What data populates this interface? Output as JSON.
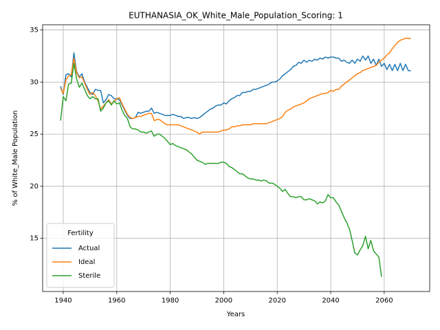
{
  "chart_data": {
    "type": "line",
    "title": "EUTHANASIA_OK_White_Male_Population_Scoring: 1",
    "x_label": "Years",
    "y_label": "% of White_Male Population",
    "legend_title": "Fertility",
    "legend_position": "lower left",
    "grid": true,
    "xlim": [
      1932.3,
      2077
    ],
    "ylim": [
      9.9,
      35.5
    ],
    "xticks": [
      1940,
      1960,
      1980,
      2000,
      2020,
      2040,
      2060
    ],
    "yticks": [
      15,
      20,
      25,
      30,
      35
    ],
    "x": [
      1939,
      1940,
      1941,
      1942,
      1943,
      1944,
      1945,
      1946,
      1947,
      1948,
      1949,
      1950,
      1951,
      1952,
      1953,
      1954,
      1955,
      1956,
      1957,
      1958,
      1959,
      1960,
      1961,
      1962,
      1963,
      1964,
      1965,
      1966,
      1967,
      1968,
      1969,
      1970,
      1971,
      1972,
      1973,
      1974,
      1975,
      1976,
      1977,
      1978,
      1979,
      1980,
      1981,
      1982,
      1983,
      1984,
      1985,
      1986,
      1987,
      1988,
      1989,
      1990,
      1991,
      1992,
      1993,
      1994,
      1995,
      1996,
      1997,
      1998,
      1999,
      2000,
      2001,
      2002,
      2003,
      2004,
      2005,
      2006,
      2007,
      2008,
      2009,
      2010,
      2011,
      2012,
      2013,
      2014,
      2015,
      2016,
      2017,
      2018,
      2019,
      2020,
      2021,
      2022,
      2023,
      2024,
      2025,
      2026,
      2027,
      2028,
      2029,
      2030,
      2031,
      2032,
      2033,
      2034,
      2035,
      2036,
      2037,
      2038,
      2039,
      2040,
      2041,
      2042,
      2043,
      2044,
      2045,
      2046,
      2047,
      2048,
      2049,
      2050,
      2051,
      2052,
      2053,
      2054,
      2055,
      2056,
      2057,
      2058,
      2059,
      2060,
      2061,
      2062,
      2063,
      2064,
      2065,
      2066,
      2067,
      2068,
      2069,
      2070
    ],
    "series": [
      {
        "name": "Actual",
        "color": "#1f77b4",
        "values": [
          29.6,
          28.8,
          30.7,
          30.8,
          30.5,
          32.8,
          31.0,
          30.5,
          30.8,
          30.0,
          29.5,
          29.0,
          28.8,
          29.3,
          29.2,
          29.2,
          28.0,
          28.3,
          28.8,
          28.7,
          28.4,
          28.4,
          28.3,
          27.8,
          27.3,
          26.8,
          26.5,
          26.5,
          26.6,
          27.1,
          27.0,
          27.1,
          27.2,
          27.2,
          27.5,
          27.0,
          27.1,
          27.0,
          26.9,
          26.8,
          26.8,
          26.8,
          26.9,
          26.8,
          26.7,
          26.7,
          26.5,
          26.6,
          26.6,
          26.5,
          26.6,
          26.5,
          26.6,
          26.8,
          27.0,
          27.2,
          27.4,
          27.5,
          27.7,
          27.8,
          27.8,
          28.0,
          27.9,
          28.2,
          28.4,
          28.5,
          28.7,
          28.7,
          29.0,
          29.0,
          29.1,
          29.1,
          29.3,
          29.3,
          29.4,
          29.5,
          29.6,
          29.7,
          29.8,
          30.0,
          30.0,
          30.1,
          30.3,
          30.6,
          30.8,
          31.0,
          31.2,
          31.5,
          31.6,
          31.9,
          31.8,
          32.1,
          31.9,
          32.1,
          32.0,
          32.2,
          32.1,
          32.3,
          32.2,
          32.4,
          32.3,
          32.4,
          32.4,
          32.3,
          32.3,
          32.0,
          32.1,
          31.9,
          31.8,
          32.1,
          31.8,
          32.2,
          32.0,
          32.5,
          32.1,
          32.5,
          31.8,
          32.2,
          31.6,
          32.2,
          31.5,
          31.8,
          31.2,
          31.7,
          31.1,
          31.7,
          31.1,
          31.8,
          31.1,
          31.7,
          31.1,
          31.1
        ]
      },
      {
        "name": "Ideal",
        "color": "#ff7f0e",
        "values": [
          29.4,
          28.9,
          30.2,
          30.6,
          30.7,
          32.3,
          30.9,
          30.4,
          30.5,
          29.9,
          29.3,
          28.8,
          29.0,
          28.7,
          28.2,
          27.4,
          27.7,
          28.0,
          28.3,
          27.9,
          28.1,
          28.4,
          28.5,
          27.9,
          27.4,
          26.9,
          26.6,
          26.5,
          26.6,
          26.7,
          26.7,
          26.8,
          26.9,
          27.0,
          27.0,
          26.3,
          26.4,
          26.4,
          26.2,
          26.0,
          25.9,
          25.9,
          25.9,
          25.9,
          25.9,
          25.8,
          25.7,
          25.6,
          25.5,
          25.4,
          25.3,
          25.2,
          25.0,
          25.2,
          25.2,
          25.2,
          25.2,
          25.2,
          25.2,
          25.2,
          25.3,
          25.4,
          25.4,
          25.5,
          25.7,
          25.7,
          25.8,
          25.8,
          25.9,
          25.9,
          25.9,
          25.9,
          26.0,
          26.0,
          26.0,
          26.0,
          26.0,
          26.0,
          26.1,
          26.2,
          26.3,
          26.4,
          26.5,
          26.7,
          27.1,
          27.3,
          27.4,
          27.6,
          27.7,
          27.8,
          27.9,
          28.0,
          28.2,
          28.4,
          28.5,
          28.6,
          28.7,
          28.8,
          28.9,
          28.9,
          29.0,
          29.2,
          29.1,
          29.3,
          29.3,
          29.6,
          29.8,
          30.0,
          30.2,
          30.4,
          30.6,
          30.8,
          30.9,
          31.1,
          31.2,
          31.3,
          31.4,
          31.5,
          31.6,
          31.9,
          32.1,
          32.3,
          32.6,
          32.8,
          33.2,
          33.5,
          33.8,
          34.0,
          34.1,
          34.2,
          34.2,
          34.2
        ]
      },
      {
        "name": "Sterile",
        "color": "#2ca02c",
        "values": [
          26.3,
          28.6,
          28.2,
          29.8,
          29.9,
          31.8,
          30.3,
          29.5,
          29.9,
          29.3,
          28.7,
          28.4,
          28.6,
          28.4,
          28.4,
          27.2,
          27.5,
          28.0,
          28.2,
          27.8,
          28.2,
          27.9,
          28.0,
          27.3,
          26.8,
          26.5,
          25.7,
          25.5,
          25.5,
          25.4,
          25.2,
          25.2,
          25.1,
          25.2,
          25.3,
          24.8,
          25.0,
          25.0,
          24.8,
          24.6,
          24.3,
          24.0,
          24.1,
          23.9,
          23.8,
          23.7,
          23.6,
          23.5,
          23.3,
          23.1,
          22.8,
          22.5,
          22.4,
          22.3,
          22.1,
          22.2,
          22.2,
          22.2,
          22.2,
          22.2,
          22.3,
          22.3,
          22.2,
          21.9,
          21.8,
          21.6,
          21.4,
          21.2,
          21.2,
          21.0,
          20.8,
          20.7,
          20.7,
          20.6,
          20.6,
          20.5,
          20.6,
          20.5,
          20.3,
          20.3,
          20.2,
          20.0,
          19.8,
          19.5,
          19.7,
          19.3,
          19.0,
          19.0,
          18.9,
          19.0,
          19.0,
          18.7,
          18.7,
          18.8,
          18.7,
          18.6,
          18.3,
          18.5,
          18.4,
          18.6,
          19.2,
          18.9,
          18.9,
          18.5,
          18.2,
          17.6,
          17.0,
          16.5,
          15.9,
          14.8,
          13.6,
          13.4,
          13.9,
          14.3,
          15.2,
          14.0,
          14.8,
          13.8,
          13.5,
          13.2,
          11.3,
          null,
          null,
          null,
          null,
          null,
          null,
          null,
          null,
          null,
          null,
          null
        ]
      }
    ]
  }
}
